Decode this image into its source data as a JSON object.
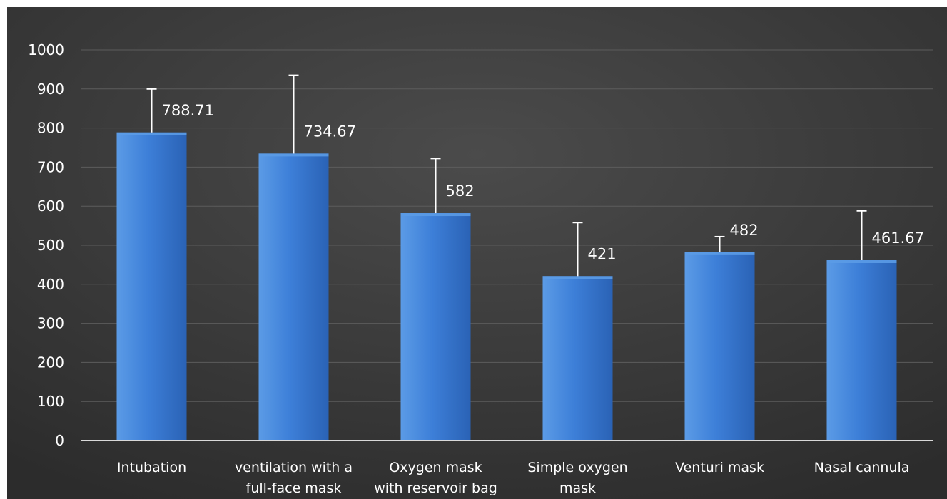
{
  "chart_data": {
    "type": "bar",
    "categories": [
      [
        "Intubation"
      ],
      [
        "ventilation with a",
        "full-face mask"
      ],
      [
        "Oxygen mask",
        "with reservoir bag"
      ],
      [
        "Simple oxygen",
        "mask"
      ],
      [
        "Venturi mask"
      ],
      [
        "Nasal cannula"
      ]
    ],
    "values": [
      788.71,
      734.67,
      582,
      421,
      482,
      461.67
    ],
    "data_labels": [
      "788.71",
      "734.67",
      "582",
      "421",
      "482",
      "461.67"
    ],
    "error_upper": [
      900,
      935,
      722,
      558,
      522,
      588
    ],
    "ylim": [
      0,
      1000
    ],
    "yticks": [
      0,
      100,
      200,
      300,
      400,
      500,
      600,
      700,
      800,
      900,
      1000
    ],
    "grid": true,
    "legend": "none",
    "colors": {
      "background_outer": "#4b4b4b",
      "background_inner": "#2c2c2c",
      "bar_light": "#5b9be6",
      "bar_mid": "#3d7fd8",
      "bar_dark": "#2a62b5",
      "text": "#ffffff",
      "axis": "#d9d9d9",
      "grid": "#5c5c5c"
    }
  }
}
